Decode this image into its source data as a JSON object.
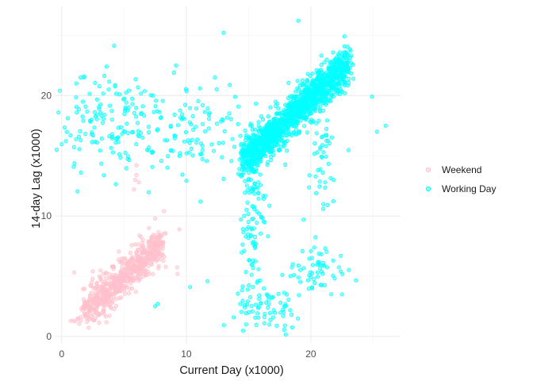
{
  "chart_data": {
    "type": "scatter",
    "title": "",
    "xlabel": "Current Day (x1000)",
    "ylabel": "14-day Lag (x1000)",
    "xlim": [
      -0.5,
      27.2
    ],
    "ylim": [
      -0.6,
      27.4
    ],
    "x_ticks": [
      0,
      10,
      20
    ],
    "y_ticks": [
      0,
      10,
      20
    ],
    "x_minor": [
      5,
      15,
      25
    ],
    "y_minor": [
      5,
      15,
      25
    ],
    "grid": true,
    "legend_position": "right",
    "series": [
      {
        "name": "Weekend",
        "color": "#ffc0cb",
        "clusters": [
          {
            "kind": "diag",
            "n": 620,
            "x_from": 1.8,
            "x_to": 8.0,
            "slope": 0.9,
            "intercept": 0.5,
            "noise": 0.75
          },
          {
            "kind": "blob",
            "n": 20,
            "cx": 2.5,
            "cy": 1.4,
            "sx": 0.9,
            "sy": 0.4
          },
          {
            "kind": "blob",
            "n": 10,
            "cx": 8.5,
            "cy": 7.5,
            "sx": 1.2,
            "sy": 1.5
          }
        ],
        "points": [
          [
            6.0,
            14.2
          ],
          [
            6.0,
            13.4
          ],
          [
            5.9,
            13.0
          ],
          [
            6.2,
            12.8
          ],
          [
            5.8,
            12.2
          ],
          [
            8.2,
            10.4
          ],
          [
            7.5,
            9.8
          ],
          [
            1.0,
            5.3
          ],
          [
            2.5,
            5.4
          ],
          [
            7.0,
            9.0
          ],
          [
            9.3,
            5.2
          ]
        ]
      },
      {
        "name": "Working Day",
        "color": "#00ffff",
        "clusters": [
          {
            "kind": "diag",
            "n": 1400,
            "x_from": 14.5,
            "x_to": 23.0,
            "slope": 0.95,
            "intercept": 0.8,
            "noise": 0.8
          },
          {
            "kind": "blob",
            "n": 160,
            "cx": 4.0,
            "cy": 17.8,
            "sx": 2.3,
            "sy": 2.2
          },
          {
            "kind": "blob",
            "n": 90,
            "cx": 11.0,
            "cy": 17.0,
            "sx": 1.6,
            "sy": 2.0
          },
          {
            "kind": "blob",
            "n": 70,
            "cx": 15.5,
            "cy": 12.5,
            "sx": 0.6,
            "sy": 2.5
          },
          {
            "kind": "blob",
            "n": 45,
            "cx": 20.8,
            "cy": 14.0,
            "sx": 0.8,
            "sy": 2.5
          },
          {
            "kind": "blob",
            "n": 70,
            "cx": 16.5,
            "cy": 2.5,
            "sx": 1.3,
            "sy": 0.9
          },
          {
            "kind": "blob",
            "n": 55,
            "cx": 20.5,
            "cy": 5.5,
            "sx": 1.2,
            "sy": 1.0
          },
          {
            "kind": "blob",
            "n": 35,
            "cx": 15.3,
            "cy": 7.5,
            "sx": 0.5,
            "sy": 2.2
          }
        ],
        "points": [
          [
            19.0,
            26.2
          ],
          [
            13.0,
            25.2
          ],
          [
            22.7,
            24.9
          ],
          [
            26.0,
            17.5
          ],
          [
            25.3,
            17.0
          ],
          [
            24.9,
            19.9
          ],
          [
            1.5,
            21.5
          ],
          [
            3.6,
            22.4
          ],
          [
            9.0,
            21.9
          ],
          [
            12.3,
            21.5
          ],
          [
            11.7,
            4.6
          ],
          [
            10.3,
            4.1
          ],
          [
            22.5,
            3.5
          ],
          [
            7.7,
            2.7
          ],
          [
            7.5,
            2.5
          ],
          [
            14.8,
            1.0
          ],
          [
            21.8,
            6.3
          ],
          [
            15.0,
            2.0
          ]
        ]
      }
    ]
  }
}
